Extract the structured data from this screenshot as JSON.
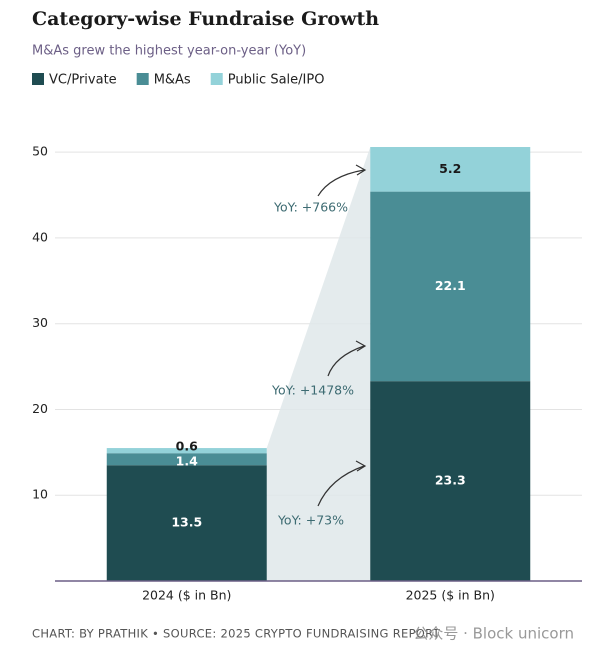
{
  "chart_data": {
    "type": "stacked_bar",
    "title": "Category-wise Fundraise Growth",
    "subtitle": "M&As grew the highest year-on-year (YoY)",
    "categories": [
      "2024 ($ in Bn)",
      "2025 ($ in Bn)"
    ],
    "series": [
      {
        "name": "VC/Private",
        "color": "#1f4c51",
        "values": [
          13.5,
          23.3
        ]
      },
      {
        "name": "M&As",
        "color": "#4a8d95",
        "values": [
          1.4,
          22.1
        ]
      },
      {
        "name": "Public Sale/IPO",
        "color": "#93d2d9",
        "values": [
          0.6,
          5.2
        ]
      }
    ],
    "ylim": [
      0,
      52
    ],
    "yticks": [
      10,
      20,
      30,
      40,
      50
    ],
    "grid": true,
    "annotations": [
      "YoY: +766%",
      "YoY: +1478%",
      "YoY: +73%"
    ],
    "footer": "CHART: BY PRATHIK • SOURCE: 2025 CRYPTO FUNDRAISING REPORT",
    "watermark": "公众号 · Block unicorn"
  }
}
